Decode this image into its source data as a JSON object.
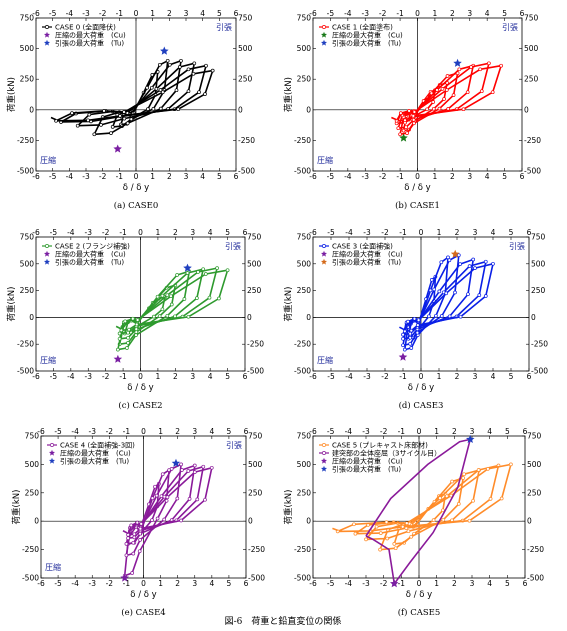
{
  "figure_caption": "図-6　荷重と鉛直変位の関係",
  "chart_data": [
    {
      "type": "line",
      "caption": "(a) CASE0",
      "xlabel": "δ / δ y",
      "ylabel": "荷重(kN)",
      "xlim": [
        -6,
        6
      ],
      "ylim": [
        -500,
        750
      ],
      "xticks": [
        "-6",
        "-5",
        "-4",
        "-3",
        "-2",
        "-1",
        "0",
        "1",
        "2",
        "3",
        "4",
        "5",
        "6"
      ],
      "yticks": [
        "-500",
        "-250",
        "0",
        "250",
        "500",
        "750"
      ],
      "region_tension": "引張",
      "region_compression": "圧縮",
      "color": "#000000",
      "legend": [
        {
          "label": "CASE 0 (全面降伏)",
          "kind": "line",
          "color": "#000000"
        },
        {
          "label": "圧縮の最大荷重　(Cu)",
          "kind": "star",
          "color": "#7a1fa2"
        },
        {
          "label": "引張の最大荷重　(Tu)",
          "kind": "star",
          "color": "#1f3fbf"
        }
      ],
      "cu": {
        "x": -1.1,
        "y": -320
      },
      "tu": {
        "x": 1.7,
        "y": 480
      },
      "loops": [
        {
          "xmax": 1.3,
          "ymax": 310,
          "xmin": -0.9,
          "ymin": -120
        },
        {
          "xmax": 1.9,
          "ymax": 400,
          "xmin": -1.4,
          "ymin": -140
        },
        {
          "xmax": 2.7,
          "ymax": 400,
          "xmin": -2.5,
          "ymin": -200
        },
        {
          "xmax": 3.5,
          "ymax": 380,
          "xmin": -3.5,
          "ymin": -130
        },
        {
          "xmax": 4.2,
          "ymax": 360,
          "xmin": -4.5,
          "ymin": -100
        },
        {
          "xmax": 4.6,
          "ymax": 320,
          "xmin": -4.8,
          "ymin": -90
        }
      ]
    },
    {
      "type": "line",
      "caption": "(b) CASE1",
      "xlabel": "δ / δ y",
      "ylabel": "荷重(kN)",
      "xlim": [
        -6,
        6
      ],
      "ylim": [
        -500,
        750
      ],
      "xticks": [
        "-6",
        "-5",
        "-4",
        "-3",
        "-2",
        "-1",
        "0",
        "1",
        "2",
        "3",
        "4",
        "5",
        "6"
      ],
      "yticks": [
        "-500",
        "-250",
        "0",
        "250",
        "500",
        "750"
      ],
      "region_tension": "引張",
      "region_compression": "圧縮",
      "color": "#ff0000",
      "legend": [
        {
          "label": "CASE 1 (全面塗布)",
          "kind": "line",
          "color": "#ff0000"
        },
        {
          "label": "圧縮の最大荷重　(Cu)",
          "kind": "star",
          "color": "#1a7a1a"
        },
        {
          "label": "引張の最大荷重　(Tu)",
          "kind": "star",
          "color": "#1f3fbf"
        }
      ],
      "cu": {
        "x": -0.8,
        "y": -230
      },
      "tu": {
        "x": 2.3,
        "y": 380
      },
      "loops": [
        {
          "xmax": 1.0,
          "ymax": 160,
          "xmin": -0.5,
          "ymin": -80
        },
        {
          "xmax": 1.7,
          "ymax": 220,
          "xmin": -0.8,
          "ymin": -170
        },
        {
          "xmax": 2.3,
          "ymax": 300,
          "xmin": -1.0,
          "ymin": -200
        },
        {
          "xmax": 3.2,
          "ymax": 360,
          "xmin": -1.1,
          "ymin": -150
        },
        {
          "xmax": 4.1,
          "ymax": 380,
          "xmin": -1.2,
          "ymin": -110
        },
        {
          "xmax": 4.8,
          "ymax": 360,
          "xmin": -1.2,
          "ymin": -90
        }
      ]
    },
    {
      "type": "line",
      "caption": "(c) CASE2",
      "xlabel": "δ / δ y",
      "ylabel": "荷重(kN)",
      "xlim": [
        -6,
        6
      ],
      "ylim": [
        -500,
        750
      ],
      "xticks": [
        "-6",
        "-5",
        "-4",
        "-3",
        "-2",
        "-1",
        "0",
        "1",
        "2",
        "3",
        "4",
        "5",
        "6"
      ],
      "yticks": [
        "-500",
        "-250",
        "0",
        "250",
        "500",
        "750"
      ],
      "region_tension": "引張",
      "region_compression": "圧縮",
      "color": "#2e9a2e",
      "legend": [
        {
          "label": "CASE 2 (フランジ補強)",
          "kind": "line",
          "color": "#2e9a2e"
        },
        {
          "label": "圧縮の最大荷重　(Cu)",
          "kind": "star",
          "color": "#7a1fa2"
        },
        {
          "label": "引張の最大荷重　(Tu)",
          "kind": "star",
          "color": "#1f3fbf"
        }
      ],
      "cu": {
        "x": -1.3,
        "y": -390
      },
      "tu": {
        "x": 2.7,
        "y": 460
      },
      "loops": [
        {
          "xmax": 1.4,
          "ymax": 190,
          "xmin": -0.9,
          "ymin": -150
        },
        {
          "xmax": 2.0,
          "ymax": 300,
          "xmin": -1.2,
          "ymin": -250
        },
        {
          "xmax": 2.8,
          "ymax": 430,
          "xmin": -1.3,
          "ymin": -300
        },
        {
          "xmax": 3.6,
          "ymax": 450,
          "xmin": -1.2,
          "ymin": -200
        },
        {
          "xmax": 4.4,
          "ymax": 460,
          "xmin": -1.2,
          "ymin": -150
        },
        {
          "xmax": 5.0,
          "ymax": 440,
          "xmin": -1.1,
          "ymin": -120
        }
      ]
    },
    {
      "type": "line",
      "caption": "(d) CASE3",
      "xlabel": "δ / δ y",
      "ylabel": "荷重(kN)",
      "xlim": [
        -6,
        6
      ],
      "ylim": [
        -500,
        750
      ],
      "xticks": [
        "-6",
        "-5",
        "-4",
        "-3",
        "-2",
        "-1",
        "0",
        "1",
        "2",
        "3",
        "4",
        "5",
        "6"
      ],
      "yticks": [
        "-500",
        "-250",
        "0",
        "250",
        "500",
        "750"
      ],
      "region_tension": "引張",
      "region_compression": "圧縮",
      "color": "#0a1fe6",
      "legend": [
        {
          "label": "CASE 3 (全面補強)",
          "kind": "line",
          "color": "#0a1fe6"
        },
        {
          "label": "圧縮の最大荷重　(Cu)",
          "kind": "star",
          "color": "#7a1fa2"
        },
        {
          "label": "引張の最大荷重　(Tu)",
          "kind": "star",
          "color": "#d46a1a"
        }
      ],
      "cu": {
        "x": -1.0,
        "y": -370
      },
      "tu": {
        "x": 1.9,
        "y": 590
      },
      "loops": [
        {
          "xmax": 0.8,
          "ymax": 380,
          "xmin": -0.7,
          "ymin": -200
        },
        {
          "xmax": 1.5,
          "ymax": 560,
          "xmin": -0.9,
          "ymin": -300
        },
        {
          "xmax": 2.1,
          "ymax": 580,
          "xmin": -1.0,
          "ymin": -260
        },
        {
          "xmax": 2.9,
          "ymax": 540,
          "xmin": -1.0,
          "ymin": -200
        },
        {
          "xmax": 3.6,
          "ymax": 520,
          "xmin": -1.0,
          "ymin": -160
        },
        {
          "xmax": 4.0,
          "ymax": 500,
          "xmin": -0.9,
          "ymin": -130
        }
      ]
    },
    {
      "type": "line",
      "caption": "(e) CASE4",
      "xlabel": "δ / δ y",
      "ylabel": "荷重(kN)",
      "xlim": [
        -6,
        6
      ],
      "ylim": [
        -500,
        750
      ],
      "xticks": [
        "-6",
        "-5",
        "-4",
        "-3",
        "-2",
        "-1",
        "0",
        "1",
        "2",
        "3",
        "4",
        "5",
        "6"
      ],
      "yticks": [
        "-500",
        "-250",
        "0",
        "250",
        "500",
        "750"
      ],
      "region_tension": "引張",
      "region_compression": "圧縮",
      "color": "#8a1a9a",
      "legend": [
        {
          "label": "CASE 4 (全面補強-3回)",
          "kind": "line",
          "color": "#8a1a9a"
        },
        {
          "label": "圧縮の最大荷重　(Cu)",
          "kind": "star",
          "color": "#7a1fa2"
        },
        {
          "label": "引張の最大荷重　(Tu)",
          "kind": "star",
          "color": "#1f3fbf"
        }
      ],
      "cu": {
        "x": -1.1,
        "y": -500
      },
      "tu": {
        "x": 1.9,
        "y": 510
      },
      "loops": [
        {
          "xmax": 0.9,
          "ymax": 330,
          "xmin": -0.9,
          "ymin": -200
        },
        {
          "xmax": 1.5,
          "ymax": 450,
          "xmin": -1.1,
          "ymin": -480
        },
        {
          "xmax": 2.2,
          "ymax": 500,
          "xmin": -1.0,
          "ymin": -300
        },
        {
          "xmax": 3.0,
          "ymax": 490,
          "xmin": -1.0,
          "ymin": -200
        },
        {
          "xmax": 3.5,
          "ymax": 480,
          "xmin": -0.9,
          "ymin": -150
        },
        {
          "xmax": 4.0,
          "ymax": 470,
          "xmin": -0.9,
          "ymin": -120
        }
      ]
    },
    {
      "type": "line",
      "caption": "(f) CASE5",
      "xlabel": "δ / δ y",
      "ylabel": "荷重(kN)",
      "xlim": [
        -6,
        6
      ],
      "ylim": [
        -500,
        750
      ],
      "xticks": [
        "-6",
        "-5",
        "-4",
        "-3",
        "-2",
        "-1",
        "0",
        "1",
        "2",
        "3",
        "4",
        "5",
        "6"
      ],
      "yticks": [
        "-500",
        "-250",
        "0",
        "250",
        "500",
        "750"
      ],
      "region_tension": "",
      "region_compression": "",
      "color": "#ff8c2a",
      "legend": [
        {
          "label": "CASE 5 (プレキャスト床部材)",
          "kind": "line",
          "color": "#ff8c2a"
        },
        {
          "label": "建突部の全体座屈（3サイクル目）",
          "kind": "line",
          "color": "#8a1a9a"
        },
        {
          "label": "圧縮の最大荷重　(Cu)",
          "kind": "star",
          "color": "#7a1fa2"
        },
        {
          "label": "引張の最大荷重　(Tu)",
          "kind": "star",
          "color": "#1f3fbf"
        }
      ],
      "cu": {
        "x": -1.4,
        "y": -550
      },
      "tu": {
        "x": 2.9,
        "y": 720
      },
      "overlay": [
        [
          -3.0,
          -130
        ],
        [
          -1.6,
          200
        ],
        [
          0.5,
          500
        ],
        [
          2.3,
          700
        ],
        [
          2.9,
          720
        ],
        [
          2.2,
          300
        ],
        [
          0.8,
          -100
        ],
        [
          -0.5,
          -360
        ],
        [
          -1.4,
          -550
        ],
        [
          -1.7,
          -250
        ],
        [
          -2.6,
          -160
        ],
        [
          -3.0,
          -130
        ]
      ],
      "loops": [
        {
          "xmax": 1.5,
          "ymax": 240,
          "xmin": -1.4,
          "ymin": -200
        },
        {
          "xmax": 2.5,
          "ymax": 380,
          "xmin": -2.2,
          "ymin": -250
        },
        {
          "xmax": 3.4,
          "ymax": 450,
          "xmin": -3.0,
          "ymin": -160
        },
        {
          "xmax": 4.5,
          "ymax": 490,
          "xmin": -3.6,
          "ymin": -110
        },
        {
          "xmax": 5.2,
          "ymax": 500,
          "xmin": -4.6,
          "ymin": -90
        }
      ]
    }
  ]
}
